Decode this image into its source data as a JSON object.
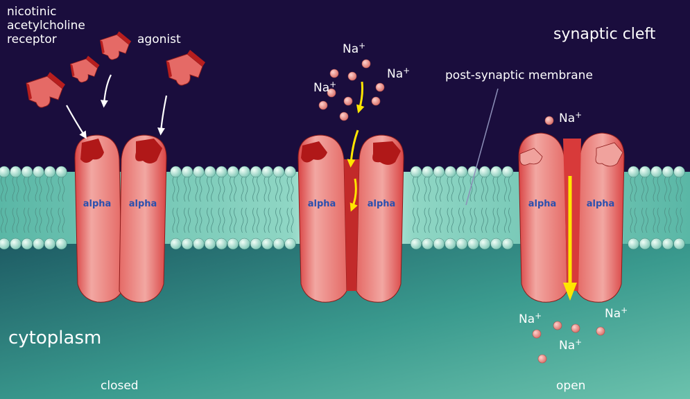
{
  "labels": {
    "receptor": [
      "nicotinic",
      "acetylcholine",
      "receptor"
    ],
    "agonist": "agonist",
    "synaptic_cleft": "synaptic cleft",
    "post_synaptic_membrane": "post-synaptic membrane",
    "cytoplasm": "cytoplasm",
    "closed": "closed",
    "open": "open",
    "na": "Na",
    "plus": "+"
  },
  "subunit_label": "alpha",
  "colors": {
    "background": "#1a0d3d",
    "membrane": "#7fd0c0",
    "cytoplasm": "#2f8a85",
    "receptor": "#e96a6a",
    "receptor_dark": "#b01818",
    "arrow": "#ffe600",
    "ion": "#f39a94"
  }
}
